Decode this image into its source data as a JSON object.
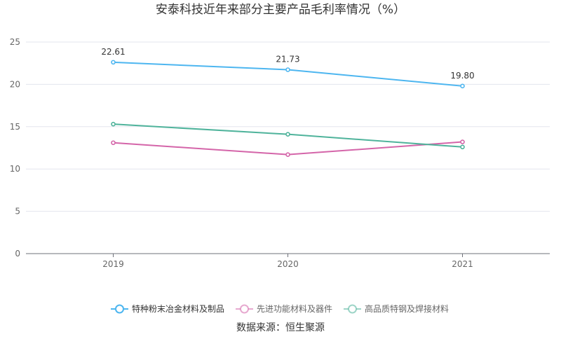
{
  "chart_data": {
    "type": "line",
    "title": "安泰科技近年来部分主要产品毛利率情况（%）",
    "categories": [
      "2019",
      "2020",
      "2021"
    ],
    "ylim": [
      0,
      25
    ],
    "yticks": [
      0,
      5,
      10,
      15,
      20,
      25
    ],
    "xlabel": "",
    "ylabel": "",
    "grid": true,
    "legend_position": "bottom",
    "series": [
      {
        "name": "特种粉末冶金材料及制品",
        "values": [
          22.61,
          21.73,
          19.8
        ],
        "color": "#4db6f0",
        "labels": [
          "22.61",
          "21.73",
          "19.80"
        ]
      },
      {
        "name": "先进功能材料及器件",
        "values": [
          13.1,
          11.7,
          13.2
        ],
        "color": "#d465a9",
        "labels": []
      },
      {
        "name": "高品质特钢及焊接材料",
        "values": [
          15.3,
          14.1,
          12.6
        ],
        "color": "#4fb39b",
        "labels": []
      }
    ]
  },
  "source_text": "数据来源：恒生聚源"
}
